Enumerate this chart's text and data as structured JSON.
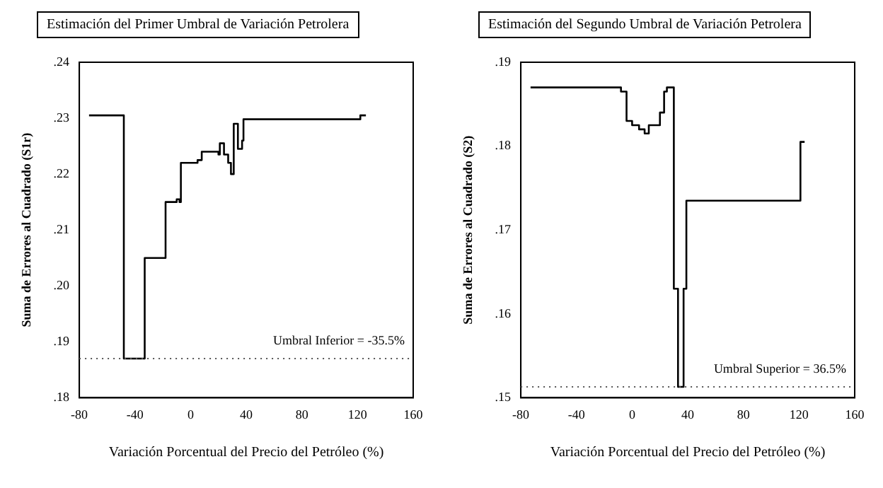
{
  "chart_data": [
    {
      "type": "step",
      "title": "Estimación del Primer Umbral de Variación Petrolera",
      "xlabel": "Variación Porcentual del Precio del Petróleo (%)",
      "ylabel": "Suma de Errores al Cuadrado (S1r)",
      "series": [
        {
          "color": "#000000",
          "x": [
            -73,
            -48,
            -33,
            -18,
            -10,
            -8,
            -7,
            5,
            8,
            20,
            21,
            24,
            27,
            29,
            31,
            34,
            37,
            38,
            122,
            126
          ],
          "values": [
            0.2305,
            0.187,
            0.205,
            0.215,
            0.2155,
            0.215,
            0.222,
            0.2225,
            0.224,
            0.2235,
            0.2255,
            0.2235,
            0.222,
            0.22,
            0.229,
            0.2245,
            0.226,
            0.2298,
            0.2305,
            0.2305
          ]
        }
      ],
      "xlim": [
        -80,
        160
      ],
      "xticks": [
        -80,
        -40,
        0,
        40,
        80,
        120,
        160
      ],
      "ylim": [
        0.18,
        0.24
      ],
      "yticks": [
        {
          "value": 0.18,
          "label": ".18"
        },
        {
          "value": 0.19,
          "label": ".19"
        },
        {
          "value": 0.2,
          "label": ".20"
        },
        {
          "value": 0.21,
          "label": ".21"
        },
        {
          "value": 0.22,
          "label": ".22"
        },
        {
          "value": 0.23,
          "label": ".23"
        },
        {
          "value": 0.24,
          "label": ".24"
        }
      ],
      "ref_lines": [
        {
          "axis": "y",
          "value": 0.187,
          "line_style": "dotted",
          "color": "#555555"
        }
      ],
      "annotations": [
        "Umbral Inferior = -35.5%"
      ],
      "grid": false,
      "legend": false
    },
    {
      "type": "step",
      "title": "Estimación del Segundo Umbral de Variación Petrolera",
      "xlabel": "Variación Porcentual del Precio del Petróleo (%)",
      "ylabel": "Suma de Errores al Cuadrado (S2)",
      "series": [
        {
          "color": "#000000",
          "x": [
            -73,
            -8,
            -4,
            0,
            5,
            9,
            12,
            20,
            23,
            25,
            30,
            33,
            37,
            39,
            121,
            124
          ],
          "values": [
            0.187,
            0.1865,
            0.183,
            0.1825,
            0.182,
            0.1815,
            0.1825,
            0.184,
            0.1865,
            0.187,
            0.163,
            0.1513,
            0.163,
            0.1735,
            0.1805,
            0.1805
          ]
        }
      ],
      "xlim": [
        -80,
        160
      ],
      "xticks": [
        -80,
        -40,
        0,
        40,
        80,
        120,
        160
      ],
      "ylim": [
        0.15,
        0.19
      ],
      "yticks": [
        {
          "value": 0.15,
          "label": ".15"
        },
        {
          "value": 0.16,
          "label": ".16"
        },
        {
          "value": 0.17,
          "label": ".17"
        },
        {
          "value": 0.18,
          "label": ".18"
        },
        {
          "value": 0.19,
          "label": ".19"
        }
      ],
      "ref_lines": [
        {
          "axis": "y",
          "value": 0.1513,
          "line_style": "dotted",
          "color": "#555555"
        }
      ],
      "annotations": [
        "Umbral Superior = 36.5%"
      ],
      "grid": false,
      "legend": false
    }
  ]
}
